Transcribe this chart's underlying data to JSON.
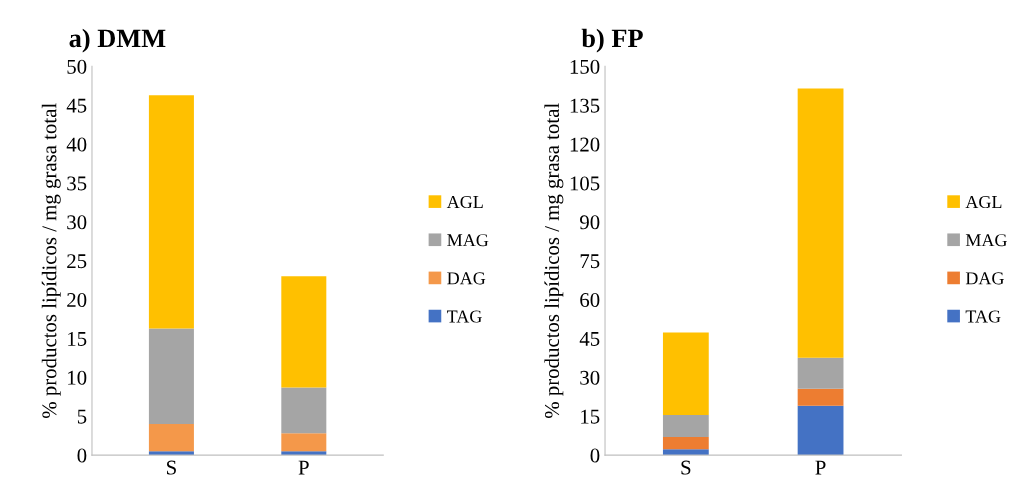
{
  "chart_data": [
    {
      "type": "bar",
      "title": "a) DMM",
      "ylabel": "% productos lipídicos / mg grasa total",
      "categories": [
        "S",
        "P"
      ],
      "stacked": true,
      "ylim": [
        0,
        50
      ],
      "yticks": [
        0,
        5,
        10,
        15,
        20,
        25,
        30,
        35,
        40,
        45,
        50
      ],
      "grid": false,
      "legend": "right",
      "series": [
        {
          "name": "TAG",
          "color": "#4472c4",
          "values": [
            0.5,
            0.5
          ]
        },
        {
          "name": "DAG",
          "color": "#f4984a",
          "values": [
            3.5,
            2.3
          ]
        },
        {
          "name": "MAG",
          "color": "#a5a5a5",
          "values": [
            12.3,
            5.9
          ]
        },
        {
          "name": "AGL",
          "color": "#ffc000",
          "values": [
            30.0,
            14.3
          ]
        }
      ]
    },
    {
      "type": "bar",
      "title": "b) FP",
      "ylabel": "% productos lipídicos / mg grasa total",
      "categories": [
        "S",
        "P"
      ],
      "stacked": true,
      "ylim": [
        0,
        150
      ],
      "yticks": [
        0,
        15,
        30,
        45,
        60,
        75,
        90,
        105,
        120,
        135,
        150
      ],
      "grid": false,
      "legend": "right",
      "series": [
        {
          "name": "TAG",
          "color": "#4472c4",
          "values": [
            2.3,
            19
          ]
        },
        {
          "name": "DAG",
          "color": "#ed7d31",
          "values": [
            4.7,
            6.6
          ]
        },
        {
          "name": "MAG",
          "color": "#a5a5a5",
          "values": [
            8.5,
            12
          ]
        },
        {
          "name": "AGL",
          "color": "#ffc000",
          "values": [
            31.8,
            103.9
          ]
        }
      ]
    }
  ]
}
